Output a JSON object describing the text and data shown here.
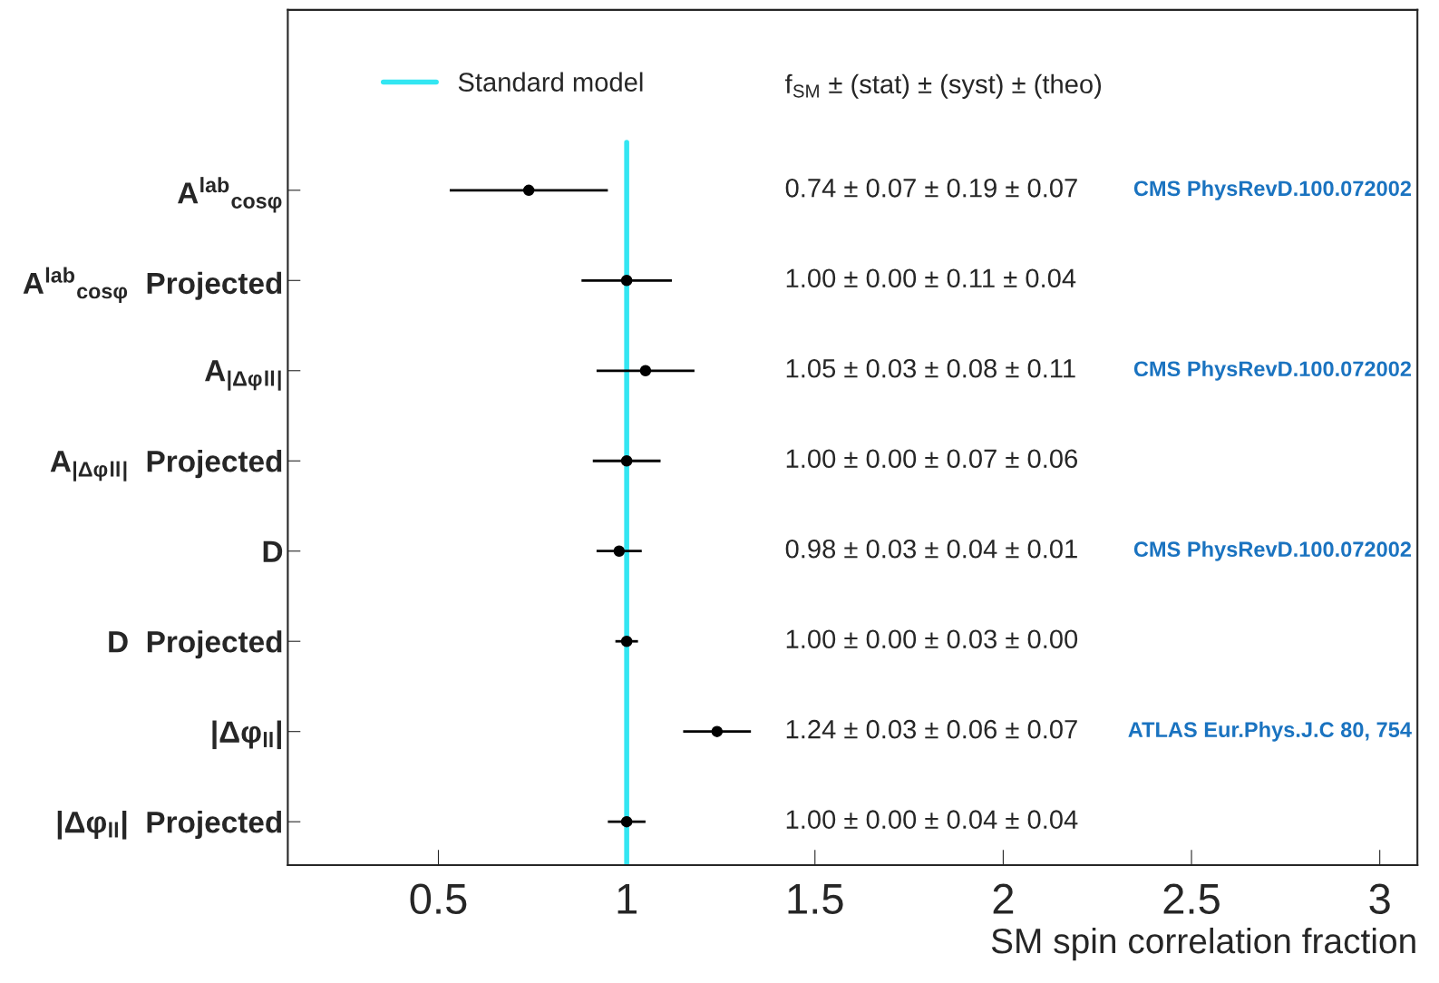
{
  "chart_data": {
    "type": "scatter",
    "orientation": "horizontal",
    "xlabel": "SM spin correlation fraction",
    "categories": [
      "A$^{lab}$$_{cosφ}$",
      "A$^{lab}$$_{cosφ}$  Projected",
      "A$_{|Δφ}$$_{ll}$$_{|}$",
      "A$_{|Δφ}$$_{ll}$$_{|}$  Projected",
      "D",
      "D  Projected",
      "|Δφ$_{ll}$|",
      "|Δφ$_{ll}$|  Projected"
    ],
    "series": [
      {
        "color": "#000000",
        "values": [
          0.74,
          1.0,
          1.05,
          1.0,
          0.98,
          1.0,
          1.24,
          1.0
        ],
        "errors": [
          0.21,
          0.12,
          0.13,
          0.09,
          0.06,
          0.03,
          0.09,
          0.05
        ]
      }
    ],
    "xlim": [
      0.1,
      3.1
    ],
    "xticks": [
      0.5,
      1,
      1.5,
      2,
      2.5,
      3
    ],
    "ref_lines": [
      {
        "axis": "x",
        "value": 1,
        "label": "Standard model",
        "color": "#33e6f2"
      }
    ],
    "annotations": [
      "f$_{SM}$ ± (stat) ± (syst) ± (theo)",
      "0.74 ± 0.07 ± 0.19 ± 0.07",
      "1.00 ± 0.00 ± 0.11 ± 0.04",
      "1.05 ± 0.03 ± 0.08 ± 0.11",
      "1.00 ± 0.00 ± 0.07 ± 0.06",
      "0.98 ± 0.03 ± 0.04 ± 0.01",
      "1.00 ± 0.00 ± 0.03 ± 0.00",
      "1.24 ± 0.03 ± 0.06 ± 0.07",
      "1.00 ± 0.00 ± 0.04 ± 0.04",
      "CMS PhysRevD.100.072002",
      "CMS PhysRevD.100.072002",
      "CMS PhysRevD.100.072002",
      "ATLAS Eur.Phys.J.C 80, 754"
    ],
    "marker": "circle",
    "grid": false,
    "legend": "top"
  }
}
